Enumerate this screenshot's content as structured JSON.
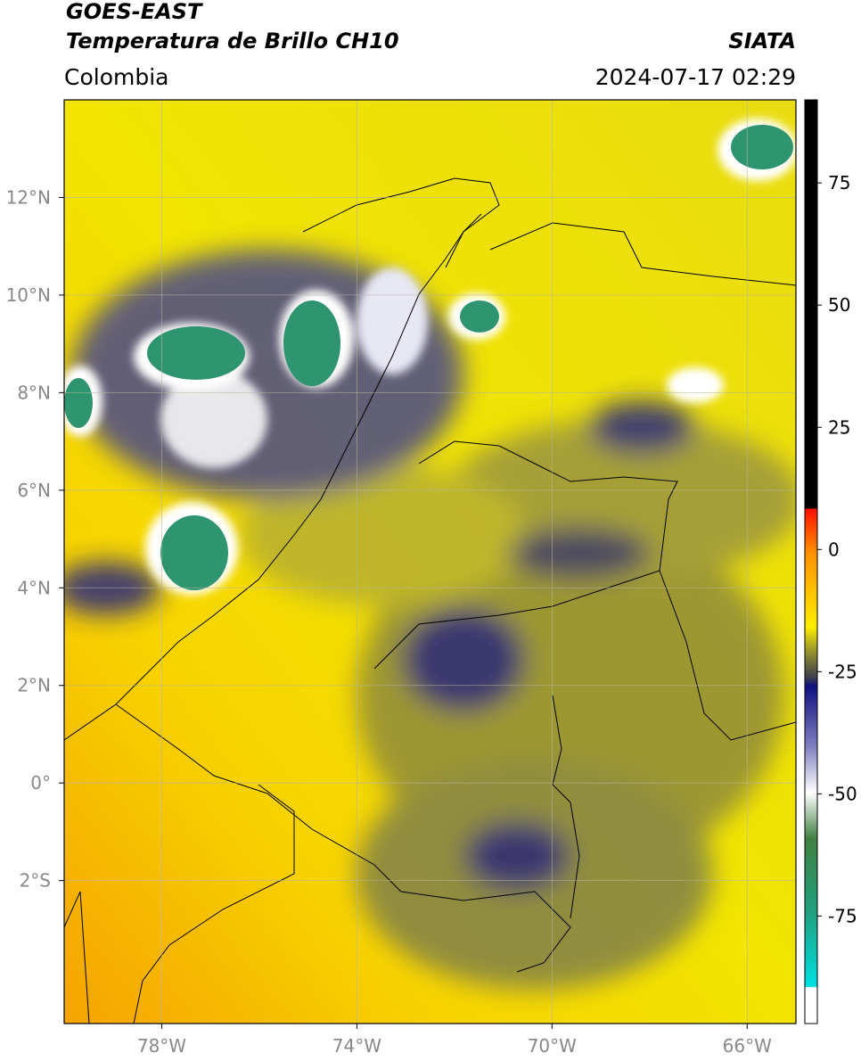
{
  "header": {
    "title": "GOES-EAST",
    "subtitle": "Temperatura de Brillo CH10",
    "region": "Colombia",
    "source": "SIATA",
    "datetime": "2024-07-17 02:29"
  },
  "map": {
    "xlim": [
      -80,
      -65
    ],
    "ylim": [
      -4.93,
      14
    ],
    "xticks": [
      {
        "value": -78,
        "label": "78°W"
      },
      {
        "value": -74,
        "label": "74°W"
      },
      {
        "value": -70,
        "label": "70°W"
      },
      {
        "value": -66,
        "label": "66°W"
      }
    ],
    "yticks": [
      {
        "value": 12,
        "label": "12°N"
      },
      {
        "value": 10,
        "label": "10°N"
      },
      {
        "value": 8,
        "label": "8°N"
      },
      {
        "value": 6,
        "label": "6°N"
      },
      {
        "value": 4,
        "label": "4°N"
      },
      {
        "value": 2,
        "label": "2°N"
      },
      {
        "value": 0,
        "label": "0°"
      },
      {
        "value": -2,
        "label": "2°S"
      }
    ],
    "grid": true
  },
  "colorbar": {
    "lim": [
      -97,
      92
    ],
    "ticks": [
      75,
      50,
      25,
      0,
      -25,
      -50,
      -75
    ]
  }
}
